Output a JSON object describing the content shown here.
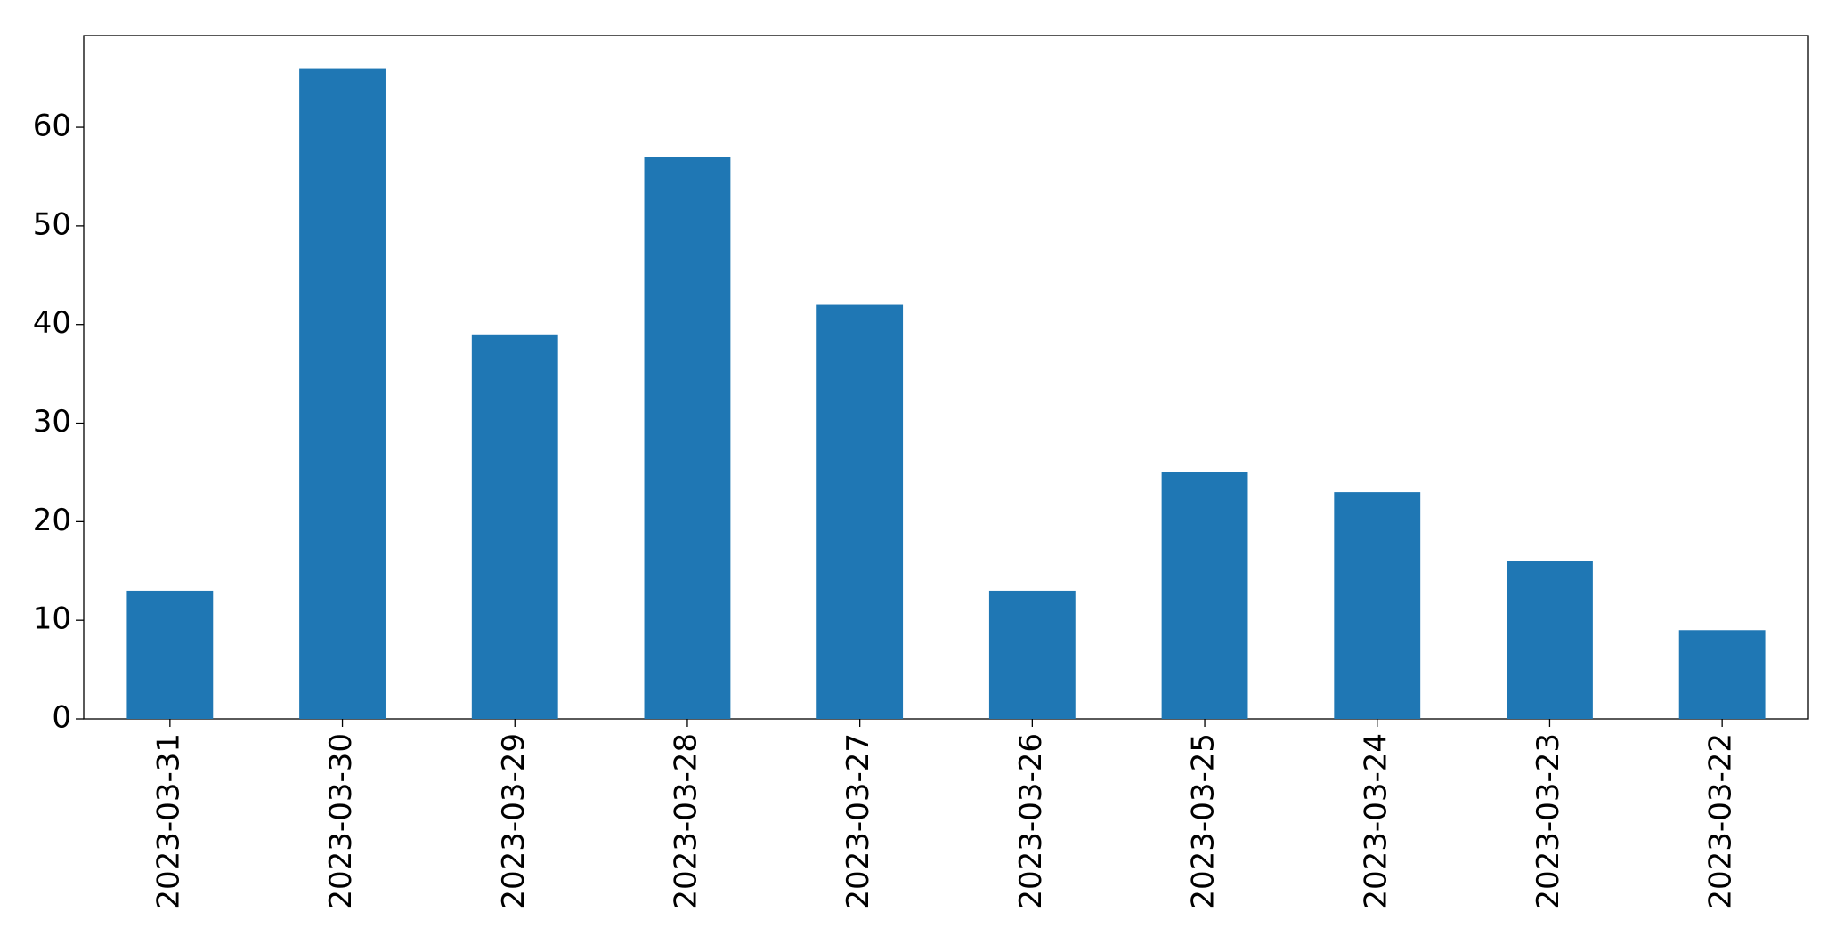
{
  "chart_data": {
    "type": "bar",
    "categories": [
      "2023-03-31",
      "2023-03-30",
      "2023-03-29",
      "2023-03-28",
      "2023-03-27",
      "2023-03-26",
      "2023-03-25",
      "2023-03-24",
      "2023-03-23",
      "2023-03-22"
    ],
    "values": [
      13,
      66,
      39,
      57,
      42,
      13,
      25,
      23,
      16,
      9
    ],
    "color": "#1f77b4",
    "ylim": [
      0,
      69.3
    ],
    "yticks": [
      0,
      10,
      20,
      30,
      40,
      50,
      60
    ],
    "grid": false
  }
}
